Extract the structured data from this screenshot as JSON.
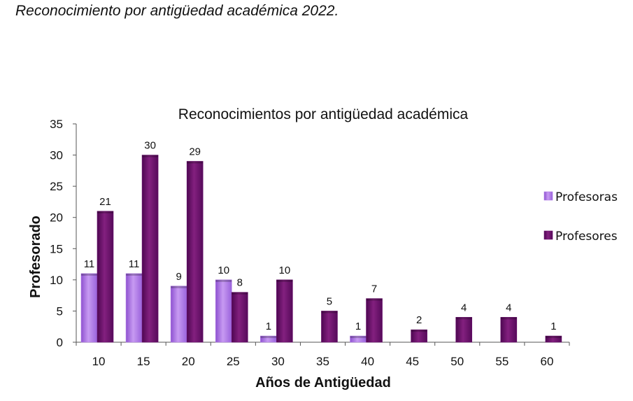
{
  "heading": "Reconocimiento por antigüedad académica 2022.",
  "colors": {
    "profesoras": "#b07ae6",
    "profesores": "#6a0f6e",
    "axis": "#555555"
  },
  "chart_data": {
    "type": "bar",
    "title": "Reconocimientos por antigüedad académica",
    "xlabel": "Años de Antigüedad",
    "ylabel": "Profesorado",
    "ylim": [
      0,
      35
    ],
    "yticks": [
      0,
      5,
      10,
      15,
      20,
      25,
      30,
      35
    ],
    "grid": false,
    "legend": "right",
    "categories": [
      "10",
      "15",
      "20",
      "25",
      "30",
      "35",
      "40",
      "45",
      "50",
      "55",
      "60"
    ],
    "series": [
      {
        "name": "Profesoras",
        "values": [
          11,
          11,
          9,
          10,
          1,
          0,
          1,
          0,
          0,
          0,
          0
        ]
      },
      {
        "name": "Profesores",
        "values": [
          21,
          30,
          29,
          8,
          10,
          5,
          7,
          2,
          4,
          4,
          1
        ]
      }
    ]
  }
}
